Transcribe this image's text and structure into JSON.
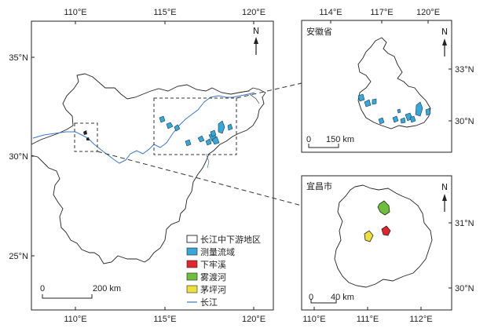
{
  "main_map": {
    "top_ticks": [
      "110°E",
      "115°E",
      "120°E"
    ],
    "bottom_ticks": [
      "110°E",
      "115°E",
      "120°E"
    ],
    "left_ticks": [
      "35°N",
      "30°N",
      "25°N"
    ],
    "north": "N",
    "scale_zero": "0",
    "scale_label": "200 km"
  },
  "legend": {
    "items": [
      {
        "label": "长江中下游地区",
        "color": "#ffffff"
      },
      {
        "label": "测量流域",
        "color": "#35a7d8"
      },
      {
        "label": "下牢溪",
        "color": "#e0262b"
      },
      {
        "label": "雾渡河",
        "color": "#6cbf3a"
      },
      {
        "label": "茅坪河",
        "color": "#ece13c"
      },
      {
        "label": "长江",
        "color": "#3a78c9"
      }
    ]
  },
  "anhui_inset": {
    "title": "安徽省",
    "top_ticks": [
      "114°E",
      "117°E",
      "120°E"
    ],
    "right_ticks": [
      "33°N",
      "30°N"
    ],
    "north": "N",
    "scale_zero": "0",
    "scale_label": "150 km"
  },
  "yichang_inset": {
    "title": "宜昌市",
    "bottom_ticks": [
      "110°E",
      "111°E",
      "112°E"
    ],
    "right_ticks": [
      "31°N",
      "30°N"
    ],
    "north": "N",
    "scale_zero": "0",
    "scale_label": "40 km"
  }
}
